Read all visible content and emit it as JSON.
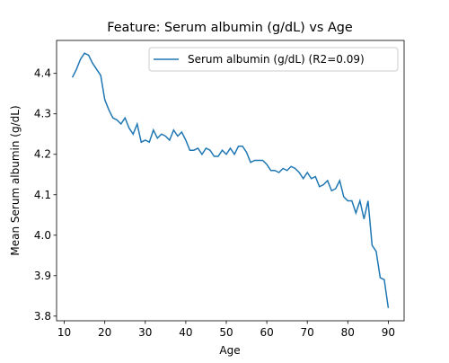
{
  "chart_data": {
    "type": "line",
    "title": "Feature: Serum albumin (g/dL) vs Age",
    "x_label": "Age",
    "y_label": "Mean Serum albumin (g/dL)",
    "x": [
      12,
      13,
      14,
      15,
      16,
      17,
      18,
      19,
      20,
      21,
      22,
      23,
      24,
      25,
      26,
      27,
      28,
      29,
      30,
      31,
      32,
      33,
      34,
      35,
      36,
      37,
      38,
      39,
      40,
      41,
      42,
      43,
      44,
      45,
      46,
      47,
      48,
      49,
      50,
      51,
      52,
      53,
      54,
      55,
      56,
      57,
      58,
      59,
      60,
      61,
      62,
      63,
      64,
      65,
      66,
      67,
      68,
      69,
      70,
      71,
      72,
      73,
      74,
      75,
      76,
      77,
      78,
      79,
      80,
      81,
      82,
      83,
      84,
      85,
      86,
      87,
      88,
      89,
      90
    ],
    "series": [
      {
        "name": "Serum albumin (g/dL) (R2=0.09)",
        "color": "#1f77b4",
        "values": [
          4.39,
          4.41,
          4.435,
          4.45,
          4.445,
          4.425,
          4.41,
          4.395,
          4.335,
          4.31,
          4.29,
          4.285,
          4.275,
          4.29,
          4.265,
          4.25,
          4.275,
          4.23,
          4.235,
          4.23,
          4.26,
          4.24,
          4.25,
          4.245,
          4.235,
          4.26,
          4.245,
          4.255,
          4.235,
          4.21,
          4.21,
          4.215,
          4.2,
          4.215,
          4.21,
          4.195,
          4.195,
          4.21,
          4.2,
          4.215,
          4.2,
          4.22,
          4.22,
          4.205,
          4.18,
          4.185,
          4.185,
          4.185,
          4.175,
          4.16,
          4.16,
          4.155,
          4.165,
          4.16,
          4.17,
          4.165,
          4.155,
          4.14,
          4.155,
          4.14,
          4.145,
          4.12,
          4.125,
          4.135,
          4.11,
          4.115,
          4.135,
          4.095,
          4.085,
          4.085,
          4.055,
          4.085,
          4.04,
          4.085,
          3.975,
          3.96,
          3.895,
          3.89,
          3.82
        ]
      }
    ],
    "xlim": [
      8.1,
      93.9
    ],
    "ylim": [
      3.7885,
      4.4815
    ],
    "xticks": [
      10,
      20,
      30,
      40,
      50,
      60,
      70,
      80,
      90
    ],
    "yticks": [
      3.8,
      3.9,
      {
        "value": 4,
        "label": "4.0"
      },
      4.1,
      4.2,
      4.3,
      4.4
    ],
    "legend": "upper right",
    "grid": false
  }
}
